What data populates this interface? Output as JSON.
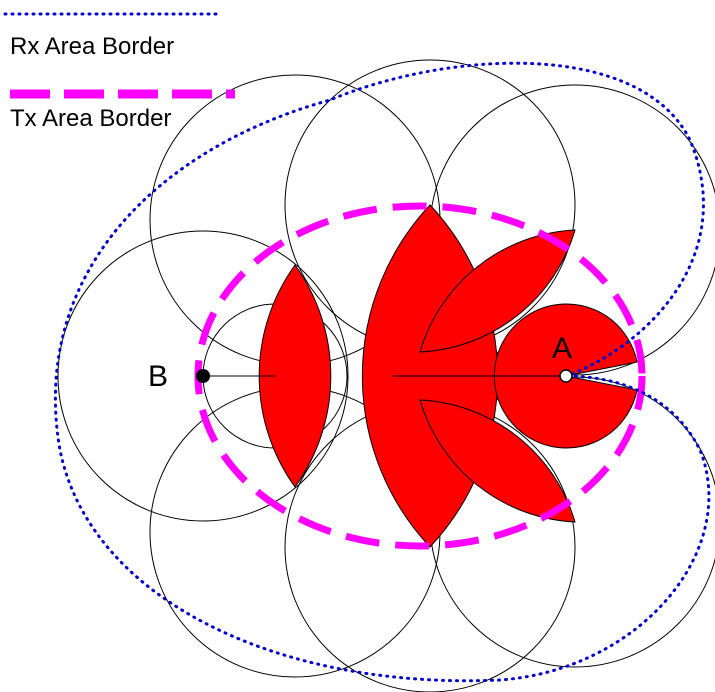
{
  "legend": {
    "rx": "Rx Area Border",
    "tx": "Tx Area Border"
  },
  "nodes": {
    "a": "A",
    "b": "B"
  }
}
